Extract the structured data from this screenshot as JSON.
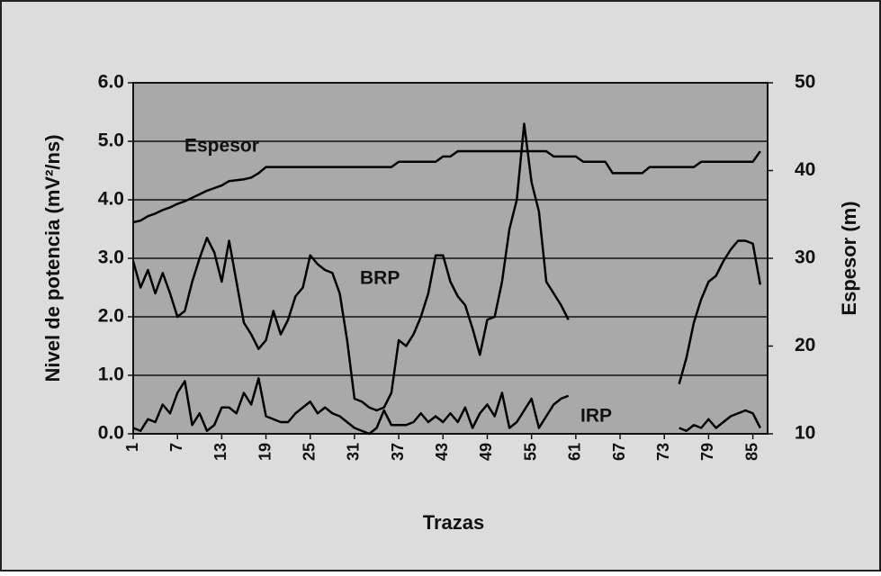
{
  "chart_data": {
    "type": "line",
    "xlabel": "Trazas",
    "ylabel": "Nivel de potencia (mV²/ns)",
    "y2label": "Espesor (m)",
    "annotations": [
      "Espesor",
      "BRP",
      "IRP"
    ],
    "x": [
      1,
      2,
      3,
      4,
      5,
      6,
      7,
      8,
      9,
      10,
      11,
      12,
      13,
      14,
      15,
      16,
      17,
      18,
      19,
      20,
      21,
      22,
      23,
      24,
      25,
      26,
      27,
      28,
      29,
      30,
      31,
      32,
      33,
      34,
      35,
      36,
      37,
      38,
      39,
      40,
      41,
      42,
      43,
      44,
      45,
      46,
      47,
      48,
      49,
      50,
      51,
      52,
      53,
      54,
      55,
      56,
      57,
      58,
      59,
      60,
      61,
      62,
      63,
      64,
      65,
      66,
      67,
      68,
      69,
      70,
      71,
      72,
      73,
      74,
      75,
      76,
      77,
      78,
      79,
      80,
      81,
      82,
      83,
      84,
      85,
      86
    ],
    "xlim": [
      1,
      87
    ],
    "xticks": [
      1,
      7,
      13,
      19,
      25,
      31,
      37,
      43,
      49,
      55,
      61,
      67,
      73,
      79,
      85
    ],
    "ylim": [
      0,
      6
    ],
    "yticks": [
      {
        "value": 0,
        "label": "0.0"
      },
      {
        "value": 1,
        "label": "1.0"
      },
      {
        "value": 2,
        "label": "2.0"
      },
      {
        "value": 3,
        "label": "3.0"
      },
      {
        "value": 4,
        "label": "4.0"
      },
      {
        "value": 5,
        "label": "5.0"
      },
      {
        "value": 6,
        "label": "6.0"
      }
    ],
    "y2lim": [
      10,
      50
    ],
    "y2ticks": [
      10,
      20,
      30,
      40,
      50
    ],
    "grid": true,
    "series": [
      {
        "name": "Espesor",
        "color": "#000000",
        "axis": "y2",
        "values": [
          34.1,
          34.3,
          34.8,
          35.1,
          35.5,
          35.8,
          36.2,
          36.5,
          36.9,
          37.3,
          37.7,
          38.0,
          38.3,
          38.8,
          38.9,
          39.0,
          39.2,
          39.7,
          40.4,
          40.4,
          40.4,
          40.4,
          40.4,
          40.4,
          40.4,
          40.4,
          40.4,
          40.4,
          40.4,
          40.4,
          40.4,
          40.4,
          40.4,
          40.4,
          40.4,
          40.4,
          41.0,
          41.0,
          41.0,
          41.0,
          41.0,
          41.0,
          41.6,
          41.6,
          42.2,
          42.2,
          42.2,
          42.2,
          42.2,
          42.2,
          42.2,
          42.2,
          42.2,
          42.2,
          42.2,
          42.2,
          42.2,
          41.6,
          41.6,
          41.6,
          41.6,
          41.0,
          41.0,
          41.0,
          41.0,
          39.7,
          39.7,
          39.7,
          39.7,
          39.7,
          40.4,
          40.4,
          40.4,
          40.4,
          40.4,
          40.4,
          40.4,
          41.0,
          41.0,
          41.0,
          41.0,
          41.0,
          41.0,
          41.0,
          41.0,
          42.2
        ]
      },
      {
        "name": "BRP",
        "color": "#000000",
        "values": [
          2.95,
          2.5,
          2.8,
          2.4,
          2.75,
          2.4,
          2.0,
          2.1,
          2.6,
          3.0,
          3.35,
          3.1,
          2.6,
          3.3,
          2.6,
          1.9,
          1.7,
          1.45,
          1.6,
          2.1,
          1.7,
          1.95,
          2.35,
          2.5,
          3.05,
          2.9,
          2.8,
          2.75,
          2.4,
          1.6,
          0.6,
          0.55,
          0.45,
          0.4,
          0.45,
          0.7,
          1.6,
          1.5,
          1.7,
          2.0,
          2.4,
          3.05,
          3.05,
          2.6,
          2.35,
          2.2,
          1.8,
          1.35,
          1.95,
          2.0,
          2.6,
          3.5,
          4.0,
          5.3,
          4.3,
          3.8,
          2.6,
          2.4,
          2.2,
          1.95,
          null,
          null,
          null,
          null,
          null,
          null,
          null,
          null,
          null,
          null,
          null,
          null,
          null,
          null,
          0.85,
          1.3,
          1.9,
          2.3,
          2.6,
          2.7,
          2.95,
          3.15,
          3.3,
          3.3,
          3.25,
          2.55
        ]
      },
      {
        "name": "IRP",
        "color": "#000000",
        "values": [
          0.1,
          0.05,
          0.25,
          0.2,
          0.5,
          0.35,
          0.7,
          0.9,
          0.15,
          0.35,
          0.05,
          0.15,
          0.45,
          0.45,
          0.35,
          0.7,
          0.5,
          0.95,
          0.3,
          0.25,
          0.2,
          0.2,
          0.35,
          0.45,
          0.55,
          0.35,
          0.45,
          0.35,
          0.3,
          0.2,
          0.1,
          0.05,
          0.0,
          0.1,
          0.4,
          0.15,
          0.15,
          0.15,
          0.2,
          0.35,
          0.2,
          0.3,
          0.2,
          0.35,
          0.2,
          0.45,
          0.1,
          0.35,
          0.5,
          0.3,
          0.7,
          0.1,
          0.2,
          0.4,
          0.6,
          0.1,
          0.3,
          0.5,
          0.6,
          0.65,
          null,
          null,
          null,
          null,
          null,
          null,
          null,
          null,
          null,
          null,
          null,
          null,
          null,
          null,
          0.1,
          0.05,
          0.15,
          0.1,
          0.25,
          0.1,
          0.2,
          0.3,
          0.35,
          0.4,
          0.35,
          0.1
        ]
      }
    ]
  }
}
